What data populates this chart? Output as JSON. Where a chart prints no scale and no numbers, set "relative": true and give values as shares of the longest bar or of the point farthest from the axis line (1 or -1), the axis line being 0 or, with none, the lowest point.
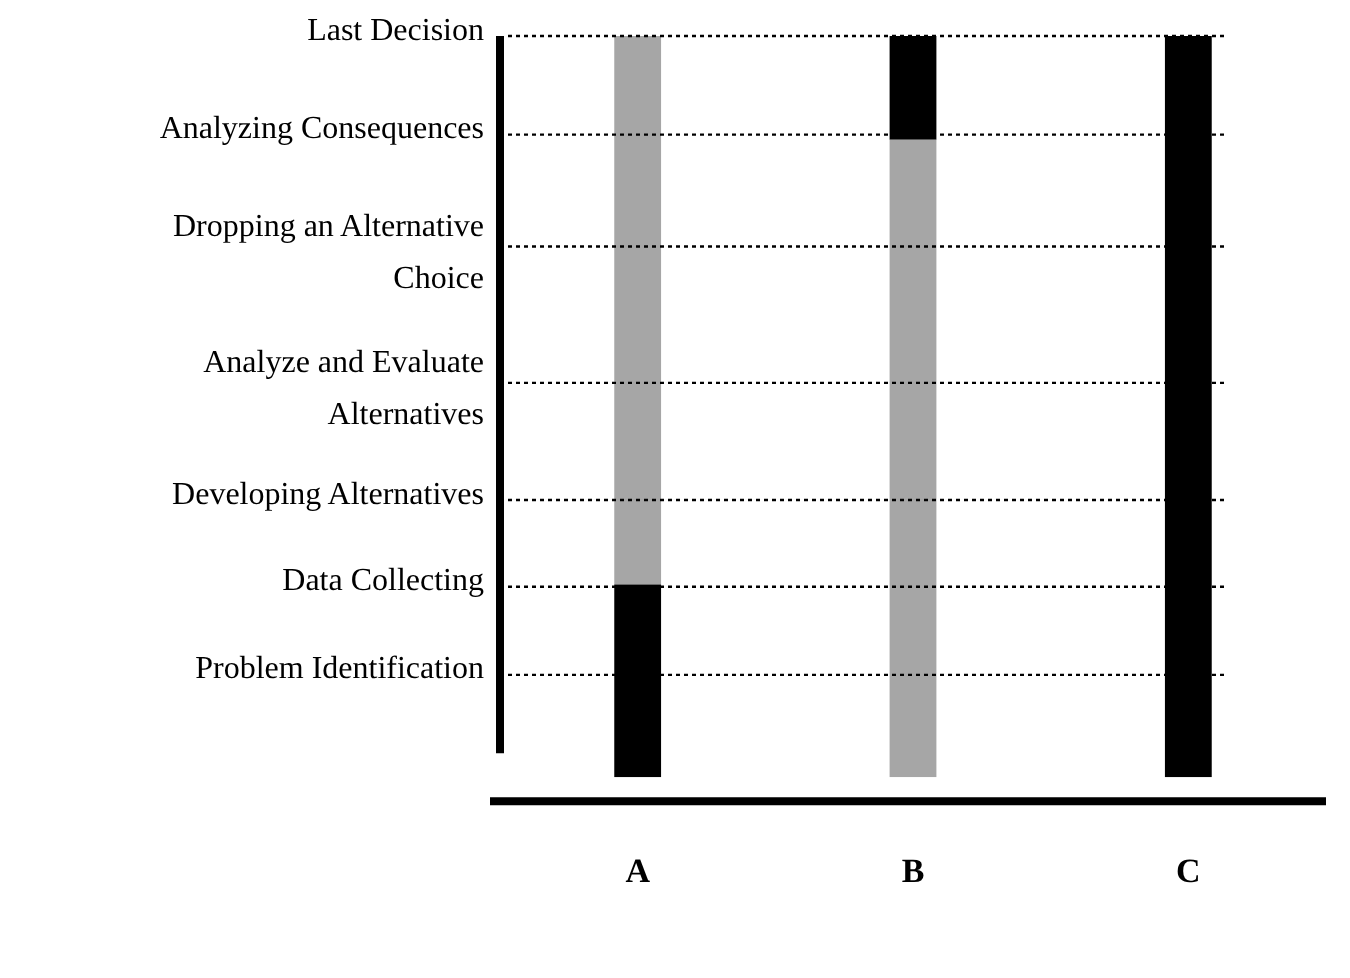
{
  "chart_data": {
    "type": "bar",
    "relative": true,
    "stacked": true,
    "categories": [
      "A",
      "B",
      "C"
    ],
    "series": [
      {
        "color": "#000000",
        "values": [
          0.26,
          null,
          1.0
        ]
      },
      {
        "color": "#a6a6a6",
        "values": [
          0.74,
          0.86,
          null
        ]
      },
      {
        "color": "#000000",
        "values": [
          null,
          0.14,
          null
        ]
      }
    ],
    "ref_lines": [
      {
        "axis": "y",
        "value": 1.0,
        "label": "Last Decision",
        "line_style": "dotted"
      },
      {
        "axis": "y",
        "value": 0.867,
        "label": "Analyzing Consequences",
        "line_style": "dotted"
      },
      {
        "axis": "y",
        "value": 0.716,
        "label": "Dropping an Alternative Choice",
        "line_style": "dotted"
      },
      {
        "axis": "y",
        "value": 0.532,
        "label": "Analyze and Evaluate Alternatives",
        "line_style": "dotted"
      },
      {
        "axis": "y",
        "value": 0.374,
        "label": "Developing Alternatives",
        "line_style": "dotted"
      },
      {
        "axis": "y",
        "value": 0.257,
        "label": "Data Collecting",
        "line_style": "dotted"
      },
      {
        "axis": "y",
        "value": 0.138,
        "label": "Problem Identification",
        "line_style": "dotted"
      }
    ],
    "grid": false,
    "legend": false
  }
}
